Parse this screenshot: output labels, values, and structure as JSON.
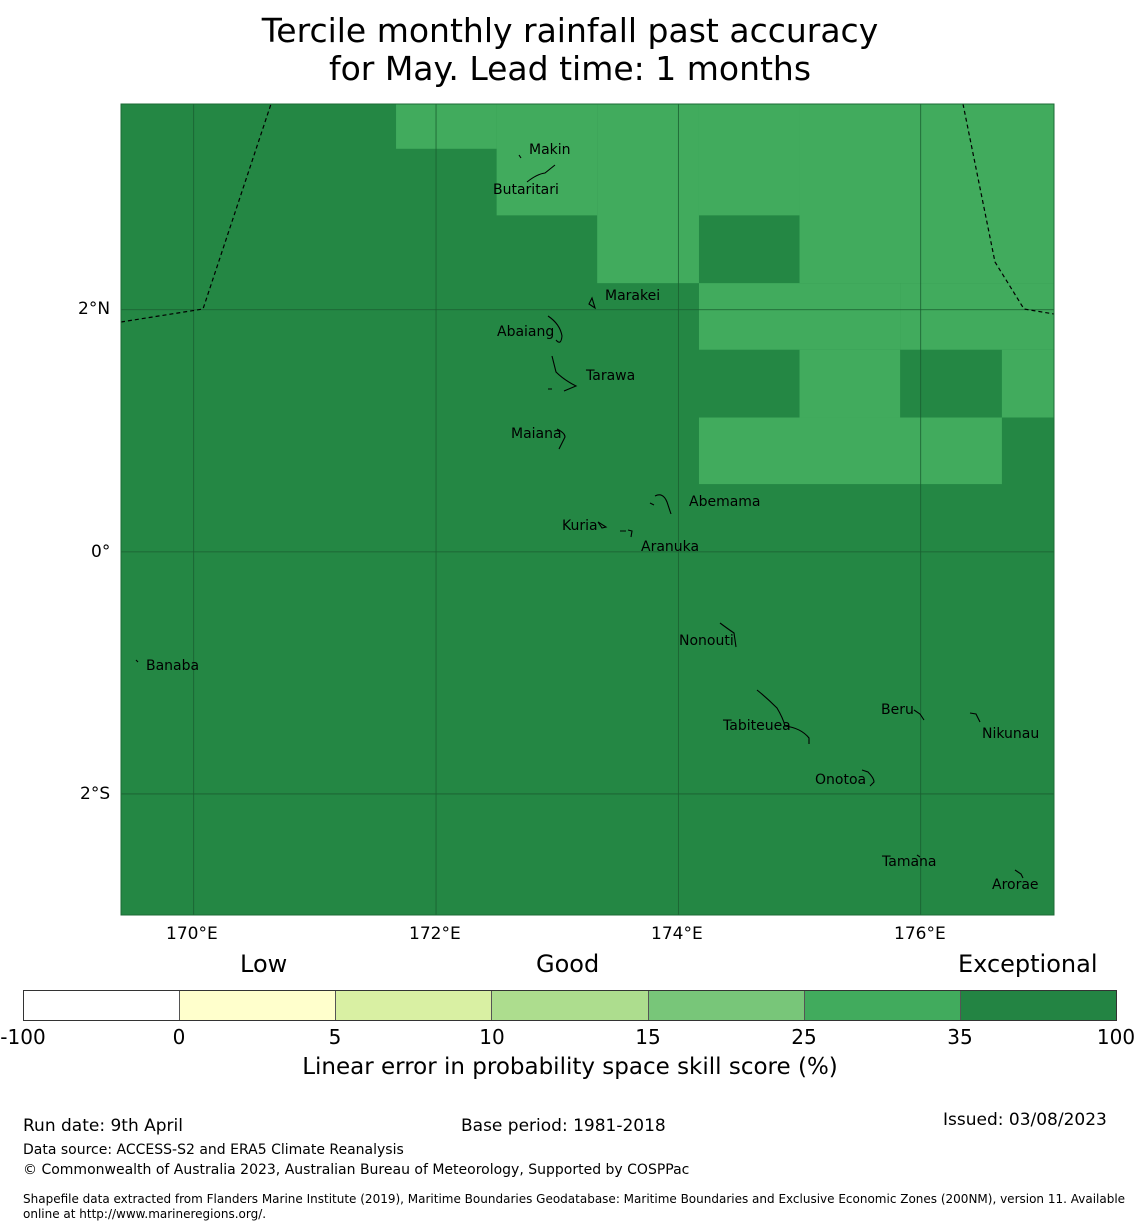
{
  "title": {
    "line1": "Tercile monthly rainfall past accuracy",
    "line2": "for May. Lead time: 1 months"
  },
  "map": {
    "lat_ticks": [
      "2°N",
      "0°",
      "2°S"
    ],
    "lon_ticks": [
      "170°E",
      "172°E",
      "174°E",
      "176°E"
    ],
    "extent": {
      "lon": [
        169.4,
        177.1
      ],
      "lat": [
        -3.0,
        3.7
      ]
    },
    "colors": {
      "dark": "#248744",
      "light": "#41ab5d"
    },
    "light_cells_deg": [
      [
        171.67,
        3.33,
        172.5,
        3.7
      ],
      [
        172.5,
        2.78,
        173.33,
        3.7
      ],
      [
        173.33,
        2.22,
        174.17,
        3.7
      ],
      [
        174.17,
        2.78,
        175.0,
        3.7
      ],
      [
        175.0,
        2.22,
        177.1,
        3.7
      ],
      [
        174.17,
        1.67,
        175.83,
        2.22
      ],
      [
        175.83,
        1.67,
        177.1,
        2.22
      ],
      [
        175.0,
        1.11,
        175.83,
        1.67
      ],
      [
        176.67,
        1.11,
        177.1,
        1.67
      ],
      [
        174.17,
        0.56,
        176.67,
        1.11
      ]
    ],
    "islands": [
      {
        "name": "Makin",
        "lon": 172.9,
        "lat": 3.33
      },
      {
        "name": "Butaritari",
        "lon": 172.75,
        "lat": 3.0
      },
      {
        "name": "Marakei",
        "lon": 173.3,
        "lat": 2.0
      },
      {
        "name": "Abaiang",
        "lon": 173.0,
        "lat": 1.82
      },
      {
        "name": "Tarawa",
        "lon": 173.1,
        "lat": 1.4
      },
      {
        "name": "Maiana",
        "lon": 173.02,
        "lat": 0.93
      },
      {
        "name": "Abemama",
        "lon": 173.88,
        "lat": 0.4
      },
      {
        "name": "Kuria",
        "lon": 173.4,
        "lat": 0.22
      },
      {
        "name": "Aranuka",
        "lon": 173.62,
        "lat": 0.17
      },
      {
        "name": "Nonouti",
        "lon": 174.45,
        "lat": -0.65
      },
      {
        "name": "Banaba",
        "lon": 169.53,
        "lat": -0.86
      },
      {
        "name": "Tabiteuea",
        "lon": 174.85,
        "lat": -1.3
      },
      {
        "name": "Beru",
        "lon": 176.0,
        "lat": -1.33
      },
      {
        "name": "Nikunau",
        "lon": 176.45,
        "lat": -1.37
      },
      {
        "name": "Onotoa",
        "lon": 175.55,
        "lat": -1.83
      },
      {
        "name": "Tamana",
        "lon": 175.98,
        "lat": -2.5
      },
      {
        "name": "Arorae",
        "lon": 176.82,
        "lat": -2.65
      }
    ]
  },
  "legend": {
    "categories": [
      "Low",
      "Good",
      "Exceptional"
    ],
    "ticks": [
      "-100",
      "0",
      "5",
      "10",
      "15",
      "25",
      "35",
      "100"
    ],
    "colors": [
      "#ffffff",
      "#ffffcc",
      "#d9f0a3",
      "#addd8e",
      "#78c679",
      "#41ab5d",
      "#238443"
    ],
    "label": "Linear error in probability space skill score (%)"
  },
  "footer": {
    "run_date": "Run date: 9th April",
    "base_period": "Base period: 1981-2018",
    "issued": "Issued: 03/08/2023",
    "data_source": "Data source: ACCESS-S2 and ERA5 Climate Reanalysis",
    "copyright": "© Commonwealth of Australia 2023, Australian Bureau of Meteorology, Supported by COSPPac",
    "shapefile": "Shapefile data extracted from Flanders Marine Institute (2019), Maritime Boundaries Geodatabase: Maritime Boundaries and Exclusive Economic Zones (200NM), version 11. Available online at http://www.marineregions.org/."
  }
}
